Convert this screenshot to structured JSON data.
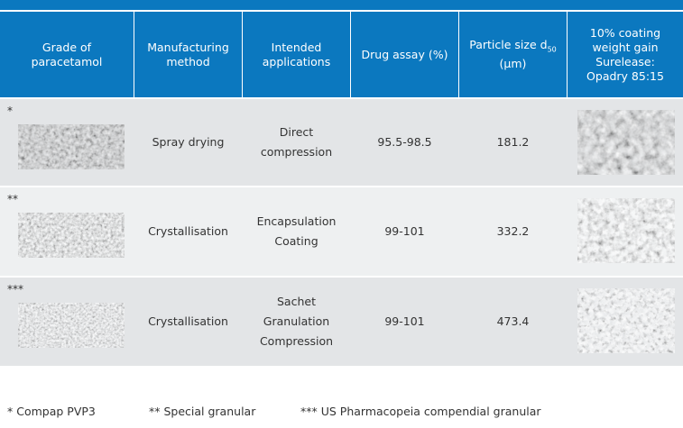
{
  "table": {
    "header": [
      "Grade of paracetamol",
      "Manufacturing method",
      "Intended applications",
      "Drug assay (%)",
      {
        "text": "Particle size d",
        "sub": "50",
        "after": " (µm)"
      },
      "10% coating weight gain Surelease: Opadry 85:15"
    ],
    "rows": [
      {
        "mark": "*",
        "method": "Spray drying",
        "applications": [
          "Direct compression"
        ],
        "assay": "95.5-98.5",
        "size": "181.2"
      },
      {
        "mark": "**",
        "method": "Crystallisation",
        "applications": [
          "Encapsulation",
          "Coating"
        ],
        "assay": "99-101",
        "size": "332.2"
      },
      {
        "mark": "***",
        "method": "Crystallisation",
        "applications": [
          "Sachet",
          "Granulation",
          "Compression"
        ],
        "assay": "99-101",
        "size": "473.4"
      }
    ]
  },
  "footnotes": [
    "* Compap PVP3",
    "** Special granular",
    "*** US Pharmacopeia compendial granular"
  ]
}
